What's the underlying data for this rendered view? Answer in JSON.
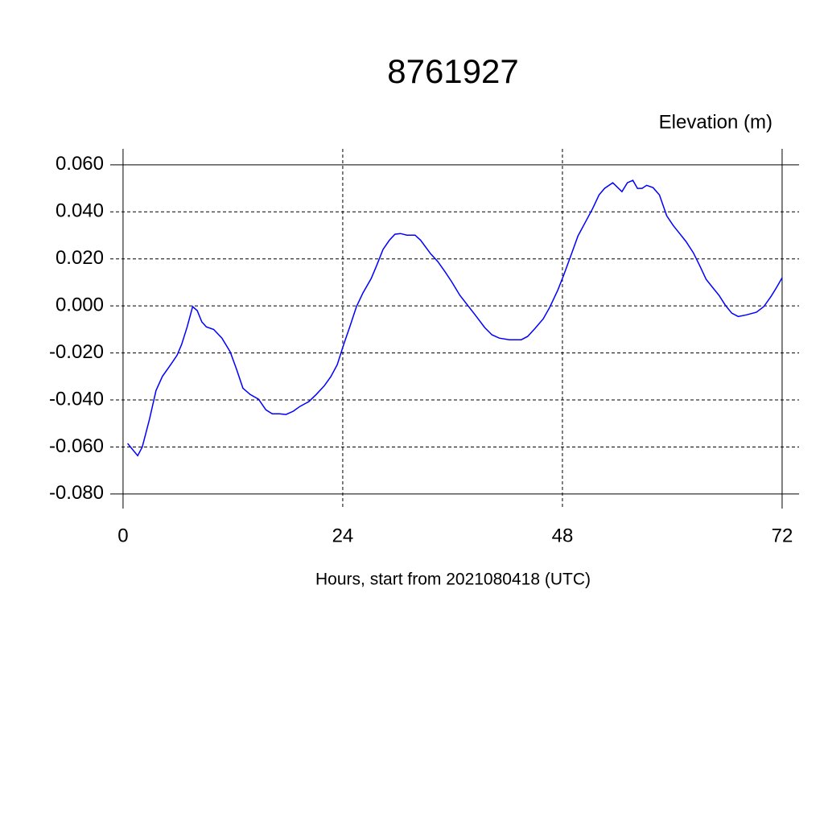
{
  "chart_data": {
    "type": "line",
    "title": "8761927",
    "ylabel": "Elevation (m)",
    "xlabel": "Hours, start from 2021080418 (UTC)",
    "x": [
      0.5,
      1.6,
      2.1,
      2.9,
      3.6,
      4.3,
      5.2,
      5.9,
      6.4,
      7.0,
      7.6,
      8.1,
      8.6,
      9.1,
      9.9,
      10.8,
      11.7,
      12.4,
      13.1,
      13.9,
      14.8,
      15.6,
      16.3,
      17.1,
      17.8,
      18.6,
      19.3,
      20.3,
      21.1,
      22.0,
      22.7,
      23.4,
      24.1,
      24.8,
      25.5,
      26.2,
      27.1,
      27.7,
      28.4,
      29.1,
      29.7,
      30.3,
      31.0,
      31.9,
      32.5,
      33.6,
      34.4,
      35.2,
      35.9,
      36.8,
      37.7,
      38.6,
      39.5,
      40.3,
      41.1,
      42.2,
      43.5,
      44.2,
      45.0,
      45.9,
      46.6,
      47.5,
      48.2,
      49.0,
      49.7,
      50.5,
      51.3,
      52.0,
      52.6,
      53.5,
      54.5,
      55.1,
      55.7,
      56.2,
      56.7,
      57.2,
      57.9,
      58.6,
      59.4,
      60.1,
      60.8,
      61.5,
      62.3,
      63.0,
      63.7,
      64.4,
      65.1,
      65.8,
      66.5,
      67.2,
      68.1,
      69.2,
      70.0,
      70.8,
      71.4,
      72.0
    ],
    "series": [
      {
        "name": "Elevation",
        "color": "#0000ff",
        "values": [
          -0.0585,
          -0.0637,
          -0.06,
          -0.048,
          -0.036,
          -0.03,
          -0.025,
          -0.021,
          -0.0164,
          -0.0089,
          -0.0003,
          -0.002,
          -0.0068,
          -0.0089,
          -0.01,
          -0.0137,
          -0.0195,
          -0.027,
          -0.035,
          -0.0377,
          -0.0397,
          -0.0442,
          -0.0459,
          -0.0459,
          -0.0462,
          -0.0448,
          -0.0428,
          -0.0407,
          -0.0377,
          -0.0339,
          -0.0301,
          -0.025,
          -0.0164,
          -0.0086,
          -0.0003,
          0.0055,
          0.0116,
          0.0171,
          0.024,
          0.028,
          0.0305,
          0.0308,
          0.0301,
          0.0301,
          0.028,
          0.0222,
          0.0188,
          0.0144,
          0.0103,
          0.0045,
          0.0,
          -0.0045,
          -0.0092,
          -0.0123,
          -0.0137,
          -0.0144,
          -0.0144,
          -0.013,
          -0.0096,
          -0.0055,
          -0.0007,
          0.0068,
          0.0137,
          0.0222,
          0.0298,
          0.0356,
          0.0414,
          0.0472,
          0.05,
          0.0524,
          0.0486,
          0.0524,
          0.0534,
          0.05,
          0.05,
          0.0513,
          0.0503,
          0.0472,
          0.0383,
          0.0342,
          0.0308,
          0.0274,
          0.0226,
          0.0171,
          0.0113,
          0.0079,
          0.0045,
          0.0003,
          -0.0031,
          -0.0045,
          -0.0038,
          -0.0027,
          -0.0003,
          0.0041,
          0.0079,
          0.012
        ]
      }
    ],
    "xlim": [
      -1.4,
      73.85
    ],
    "ylim": [
      -0.0862,
      0.0668
    ],
    "xticks": [
      0,
      24,
      48,
      72
    ],
    "yticks": [
      {
        "value": 0.06,
        "label": "0.060"
      },
      {
        "value": 0.04,
        "label": "0.040"
      },
      {
        "value": 0.02,
        "label": "0.020"
      },
      {
        "value": 0,
        "label": "0.000"
      },
      {
        "value": -0.02,
        "label": "-0.020"
      },
      {
        "value": -0.04,
        "label": "-0.040"
      },
      {
        "value": -0.06,
        "label": "-0.060"
      },
      {
        "value": -0.08,
        "label": "-0.080"
      }
    ],
    "grid": true
  }
}
